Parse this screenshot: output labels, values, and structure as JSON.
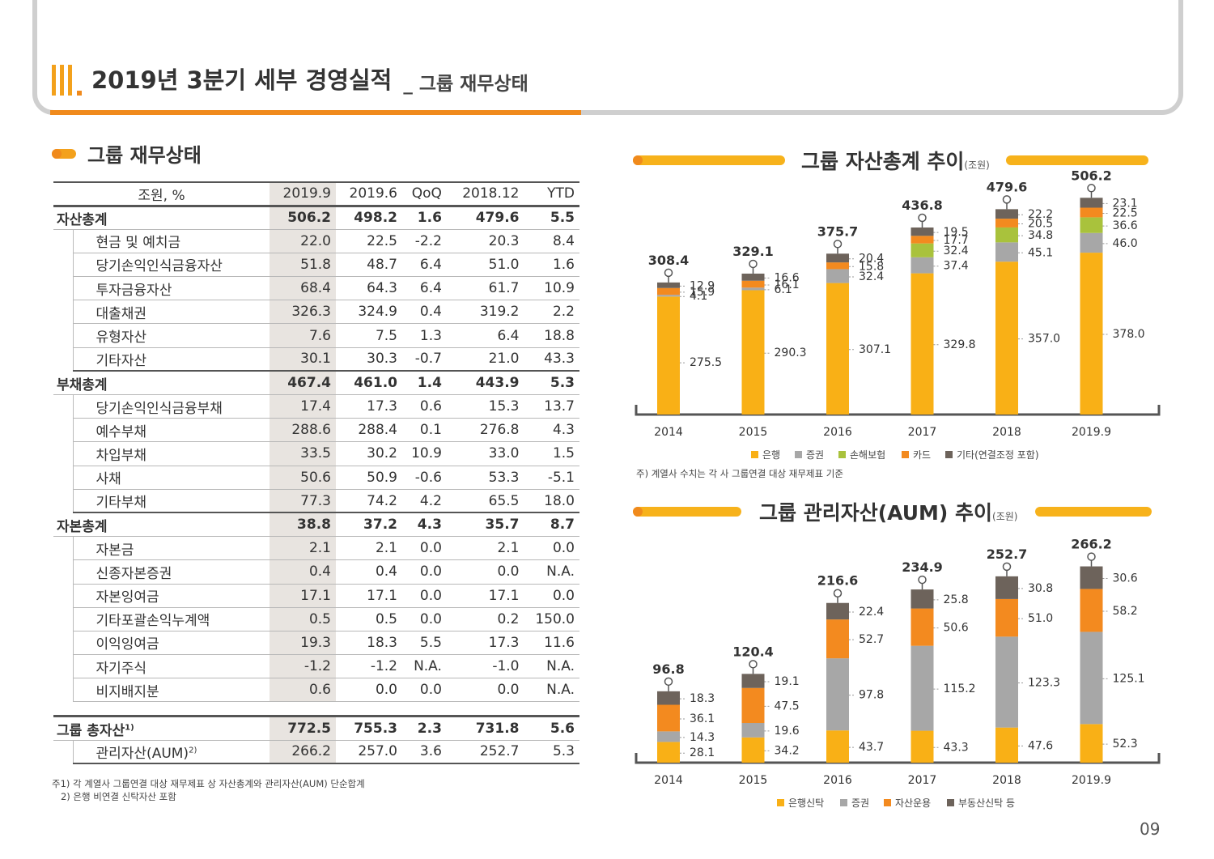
{
  "header": {
    "roman": "III",
    "title": "2019년 3분기 세부 경영실적",
    "subtitle": "_ 그룹 재무상태"
  },
  "left_section": {
    "title": "그룹 재무상태"
  },
  "table": {
    "columns": [
      "조원, %",
      "2019.9",
      "2019.6",
      "QoQ",
      "2018.12",
      "YTD"
    ],
    "rows": [
      {
        "label": "자산총계",
        "level": 0,
        "values": [
          "506.2",
          "498.2",
          "1.6",
          "479.6",
          "5.5"
        ]
      },
      {
        "label": "현금 및 예치금",
        "level": 1,
        "values": [
          "22.0",
          "22.5",
          "-2.2",
          "20.3",
          "8.4"
        ]
      },
      {
        "label": "당기손익인식금융자산",
        "level": 1,
        "values": [
          "51.8",
          "48.7",
          "6.4",
          "51.0",
          "1.6"
        ]
      },
      {
        "label": "투자금융자산",
        "level": 1,
        "values": [
          "68.4",
          "64.3",
          "6.4",
          "61.7",
          "10.9"
        ]
      },
      {
        "label": "대출채권",
        "level": 1,
        "values": [
          "326.3",
          "324.9",
          "0.4",
          "319.2",
          "2.2"
        ]
      },
      {
        "label": "유형자산",
        "level": 1,
        "values": [
          "7.6",
          "7.5",
          "1.3",
          "6.4",
          "18.8"
        ]
      },
      {
        "label": "기타자산",
        "level": 1,
        "values": [
          "30.1",
          "30.3",
          "-0.7",
          "21.0",
          "43.3"
        ]
      },
      {
        "label": "부채총계",
        "level": 0,
        "values": [
          "467.4",
          "461.0",
          "1.4",
          "443.9",
          "5.3"
        ]
      },
      {
        "label": "당기손익인식금융부채",
        "level": 1,
        "values": [
          "17.4",
          "17.3",
          "0.6",
          "15.3",
          "13.7"
        ]
      },
      {
        "label": "예수부채",
        "level": 1,
        "values": [
          "288.6",
          "288.4",
          "0.1",
          "276.8",
          "4.3"
        ]
      },
      {
        "label": "차입부채",
        "level": 1,
        "values": [
          "33.5",
          "30.2",
          "10.9",
          "33.0",
          "1.5"
        ]
      },
      {
        "label": "사채",
        "level": 1,
        "values": [
          "50.6",
          "50.9",
          "-0.6",
          "53.3",
          "-5.1"
        ]
      },
      {
        "label": "기타부채",
        "level": 1,
        "values": [
          "77.3",
          "74.2",
          "4.2",
          "65.5",
          "18.0"
        ]
      },
      {
        "label": "자본총계",
        "level": 0,
        "values": [
          "38.8",
          "37.2",
          "4.3",
          "35.7",
          "8.7"
        ]
      },
      {
        "label": "자본금",
        "level": 1,
        "values": [
          "2.1",
          "2.1",
          "0.0",
          "2.1",
          "0.0"
        ]
      },
      {
        "label": "신종자본증권",
        "level": 1,
        "values": [
          "0.4",
          "0.4",
          "0.0",
          "0.0",
          "N.A."
        ]
      },
      {
        "label": "자본잉여금",
        "level": 1,
        "values": [
          "17.1",
          "17.1",
          "0.0",
          "17.1",
          "0.0"
        ]
      },
      {
        "label": "기타포괄손익누계액",
        "level": 1,
        "values": [
          "0.5",
          "0.5",
          "0.0",
          "0.2",
          "150.0"
        ]
      },
      {
        "label": "이익잉여금",
        "level": 1,
        "values": [
          "19.3",
          "18.3",
          "5.5",
          "17.3",
          "11.6"
        ]
      },
      {
        "label": "자기주식",
        "level": 1,
        "values": [
          "-1.2",
          "-1.2",
          "N.A.",
          "-1.0",
          "N.A."
        ]
      },
      {
        "label": "비지배지분",
        "level": 1,
        "values": [
          "0.6",
          "0.0",
          "0.0",
          "0.0",
          "N.A."
        ]
      }
    ],
    "summary": [
      {
        "label": "그룹 총자산",
        "sup": "1)",
        "level": 0,
        "values": [
          "772.5",
          "755.3",
          "2.3",
          "731.8",
          "5.6"
        ]
      },
      {
        "label": "관리자산(AUM)",
        "sup": "2)",
        "level": 1,
        "values": [
          "266.2",
          "257.0",
          "3.6",
          "252.7",
          "5.3"
        ]
      }
    ]
  },
  "left_note": "주1) 각 계열사 그룹연결 대상 재무제표 상 자산총계와 관리자산(AUM) 단순합계\n   2) 은행 비연결 신탁자산 포함",
  "right_note": "주) 계열사 수치는 각 사 그룹연결 대상 재무제표 기준",
  "page_number": "09",
  "chart_data": [
    {
      "type": "bar",
      "stacked": true,
      "title": "그룹 자산총계 추이",
      "unit": "(조원)",
      "categories": [
        "2014",
        "2015",
        "2016",
        "2017",
        "2018",
        "2019.9"
      ],
      "totals": [
        "308.4",
        "329.1",
        "375.7",
        "436.8",
        "479.6",
        "506.2"
      ],
      "ylim": [
        0,
        520
      ],
      "series": [
        {
          "name": "은행",
          "color": "#f9b016",
          "values": [
            275.5,
            290.3,
            307.1,
            329.8,
            357.0,
            378.0
          ],
          "labels": [
            "275.5",
            "290.3",
            "307.1",
            "329.8",
            "357.0",
            "378.0"
          ]
        },
        {
          "name": "증권",
          "color": "#a7a7a7",
          "values": [
            4.1,
            6.1,
            32.4,
            37.4,
            45.1,
            46.0
          ],
          "labels": [
            "4.1",
            "6.1",
            "32.4",
            "37.4",
            "45.1",
            "46.0"
          ]
        },
        {
          "name": "손해보험",
          "color": "#a9c23c",
          "values": [
            0,
            0,
            0,
            32.4,
            34.8,
            36.6
          ],
          "labels": [
            "",
            "",
            "",
            "32.4",
            "34.8",
            "36.6"
          ]
        },
        {
          "name": "카드",
          "color": "#f38a1f",
          "values": [
            15.9,
            16.1,
            15.8,
            17.7,
            20.5,
            22.5
          ],
          "labels": [
            "15.9",
            "16.1",
            "15.8",
            "17.7",
            "20.5",
            "22.5"
          ]
        },
        {
          "name": "기타(연결조정 포함)",
          "color": "#6d635b",
          "values": [
            12.9,
            16.6,
            20.4,
            19.5,
            22.2,
            23.1
          ],
          "labels": [
            "12.9",
            "16.6",
            "20.4",
            "19.5",
            "22.2",
            "23.1"
          ]
        }
      ],
      "legend": "bottom"
    },
    {
      "type": "bar",
      "stacked": true,
      "title": "그룹 관리자산(AUM) 추이",
      "unit": "(조원)",
      "categories": [
        "2014",
        "2015",
        "2016",
        "2017",
        "2018",
        "2019.9"
      ],
      "totals": [
        "96.8",
        "120.4",
        "216.6",
        "234.9",
        "252.7",
        "266.2"
      ],
      "ylim": [
        0,
        280
      ],
      "series": [
        {
          "name": "은행신탁",
          "color": "#f9b016",
          "values": [
            28.1,
            34.2,
            43.7,
            43.3,
            47.6,
            52.3
          ],
          "labels": [
            "28.1",
            "34.2",
            "43.7",
            "43.3",
            "47.6",
            "52.3"
          ]
        },
        {
          "name": "증권",
          "color": "#a7a7a7",
          "values": [
            14.3,
            19.6,
            97.8,
            115.2,
            123.3,
            125.1
          ],
          "labels": [
            "14.3",
            "19.6",
            "97.8",
            "115.2",
            "123.3",
            "125.1"
          ]
        },
        {
          "name": "자산운용",
          "color": "#f38a1f",
          "values": [
            36.1,
            47.5,
            52.7,
            50.6,
            51.0,
            58.2
          ],
          "labels": [
            "36.1",
            "47.5",
            "52.7",
            "50.6",
            "51.0",
            "58.2"
          ]
        },
        {
          "name": "부동산신탁 등",
          "color": "#6d635b",
          "values": [
            18.3,
            19.1,
            22.4,
            25.8,
            30.8,
            30.6
          ],
          "labels": [
            "18.3",
            "19.1",
            "22.4",
            "25.8",
            "30.8",
            "30.6"
          ]
        }
      ],
      "legend": "bottom"
    }
  ]
}
